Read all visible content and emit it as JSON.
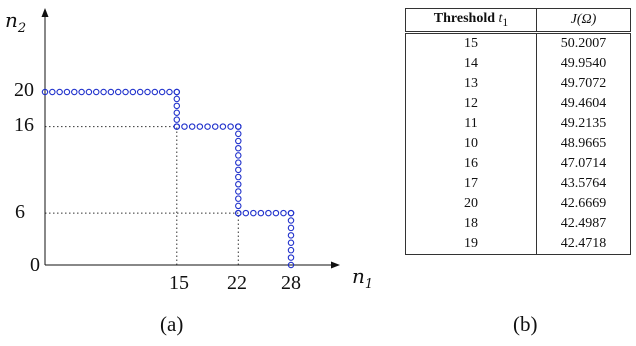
{
  "figure": {
    "panel_a": {
      "caption": "(a)",
      "x_axis": {
        "var": "n",
        "sub": "1"
      },
      "y_axis": {
        "var": "n",
        "sub": "2"
      },
      "x_ticks": [
        "15",
        "22",
        "28"
      ],
      "y_ticks": [
        "20",
        "16",
        "6",
        "0"
      ]
    },
    "panel_b": {
      "caption": "(b)",
      "header": {
        "col1_bold": "Threshold",
        "col1_var": "t",
        "col1_sub": "1",
        "col2": "J(Ω)"
      },
      "rows": [
        [
          "15",
          "50.2007"
        ],
        [
          "14",
          "49.9540"
        ],
        [
          "13",
          "49.7072"
        ],
        [
          "12",
          "49.4604"
        ],
        [
          "11",
          "49.2135"
        ],
        [
          "10",
          "48.9665"
        ],
        [
          "16",
          "47.0714"
        ],
        [
          "17",
          "43.5764"
        ],
        [
          "20",
          "42.6669"
        ],
        [
          "18",
          "42.4987"
        ],
        [
          "19",
          "42.4718"
        ]
      ]
    }
  },
  "chart_data": {
    "type": "scatter",
    "xlabel": "n1",
    "ylabel": "n2",
    "xlim": [
      0,
      33
    ],
    "ylim": [
      0,
      23
    ],
    "staircase_segments": [
      {
        "from": [
          0,
          20
        ],
        "to": [
          15,
          20
        ]
      },
      {
        "from": [
          15,
          20
        ],
        "to": [
          15,
          16
        ]
      },
      {
        "from": [
          15,
          16
        ],
        "to": [
          22,
          16
        ]
      },
      {
        "from": [
          22,
          16
        ],
        "to": [
          22,
          6
        ]
      },
      {
        "from": [
          22,
          6
        ],
        "to": [
          28,
          6
        ]
      },
      {
        "from": [
          28,
          6
        ],
        "to": [
          28,
          0
        ]
      }
    ],
    "reference_lines": [
      {
        "axis": "y",
        "value": 16,
        "to_x": 15
      },
      {
        "axis": "y",
        "value": 6,
        "to_x": 22
      },
      {
        "axis": "x",
        "value": 15,
        "to_y": 16
      },
      {
        "axis": "x",
        "value": 22,
        "to_y": 6
      }
    ],
    "marker": "open-circle",
    "marker_color": "#2233cc"
  }
}
